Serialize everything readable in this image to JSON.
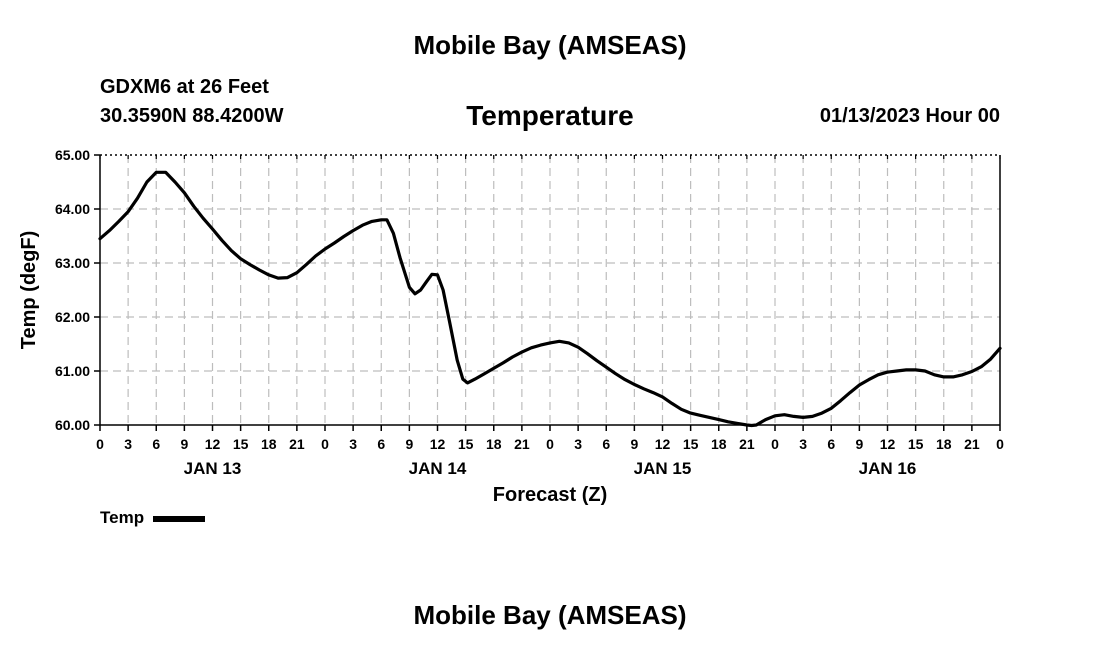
{
  "page": {
    "title": "Mobile Bay (AMSEAS)",
    "footer_title": "Mobile Bay (AMSEAS)"
  },
  "header": {
    "station": "GDXM6 at 26 Feet",
    "coordinates": "30.3590N  88.4200W",
    "timestamp": "01/13/2023 Hour 00"
  },
  "chart_data": {
    "type": "line",
    "title": "Temperature",
    "xlabel": "Forecast (Z)",
    "ylabel": "Temp (degF)",
    "ylim": [
      60.0,
      65.0
    ],
    "xlim": [
      0,
      96
    ],
    "x_unit": "hours from 01/13/2023 00Z",
    "grid": true,
    "legend_position": "bottom-left",
    "y_ticks": [
      "60.00",
      "61.00",
      "62.00",
      "63.00",
      "64.00",
      "65.00"
    ],
    "x_ticks": [
      {
        "x": 0,
        "label": "0"
      },
      {
        "x": 3,
        "label": "3"
      },
      {
        "x": 6,
        "label": "6"
      },
      {
        "x": 9,
        "label": "9"
      },
      {
        "x": 12,
        "label": "12"
      },
      {
        "x": 15,
        "label": "15"
      },
      {
        "x": 18,
        "label": "18"
      },
      {
        "x": 21,
        "label": "21"
      },
      {
        "x": 24,
        "label": "0"
      },
      {
        "x": 27,
        "label": "3"
      },
      {
        "x": 30,
        "label": "6"
      },
      {
        "x": 33,
        "label": "9"
      },
      {
        "x": 36,
        "label": "12"
      },
      {
        "x": 39,
        "label": "15"
      },
      {
        "x": 42,
        "label": "18"
      },
      {
        "x": 45,
        "label": "21"
      },
      {
        "x": 48,
        "label": "0"
      },
      {
        "x": 51,
        "label": "3"
      },
      {
        "x": 54,
        "label": "6"
      },
      {
        "x": 57,
        "label": "9"
      },
      {
        "x": 60,
        "label": "12"
      },
      {
        "x": 63,
        "label": "15"
      },
      {
        "x": 66,
        "label": "18"
      },
      {
        "x": 69,
        "label": "21"
      },
      {
        "x": 72,
        "label": "0"
      },
      {
        "x": 75,
        "label": "3"
      },
      {
        "x": 78,
        "label": "6"
      },
      {
        "x": 81,
        "label": "9"
      },
      {
        "x": 84,
        "label": "12"
      },
      {
        "x": 87,
        "label": "15"
      },
      {
        "x": 90,
        "label": "18"
      },
      {
        "x": 93,
        "label": "21"
      },
      {
        "x": 96,
        "label": "0"
      }
    ],
    "day_labels": [
      {
        "x": 12,
        "label": "JAN 13"
      },
      {
        "x": 36,
        "label": "JAN 14"
      },
      {
        "x": 60,
        "label": "JAN 15"
      },
      {
        "x": 84,
        "label": "JAN 16"
      }
    ],
    "series": [
      {
        "name": "Temp",
        "color": "#000000",
        "points": [
          [
            0,
            63.45
          ],
          [
            1,
            63.6
          ],
          [
            2,
            63.77
          ],
          [
            3,
            63.95
          ],
          [
            4,
            64.2
          ],
          [
            5,
            64.5
          ],
          [
            6,
            64.68
          ],
          [
            7,
            64.68
          ],
          [
            8,
            64.5
          ],
          [
            9,
            64.3
          ],
          [
            10,
            64.05
          ],
          [
            11,
            63.83
          ],
          [
            12,
            63.63
          ],
          [
            13,
            63.42
          ],
          [
            14,
            63.23
          ],
          [
            15,
            63.08
          ],
          [
            16,
            62.97
          ],
          [
            17,
            62.87
          ],
          [
            18,
            62.78
          ],
          [
            19,
            62.72
          ],
          [
            20,
            62.73
          ],
          [
            21,
            62.82
          ],
          [
            22,
            62.97
          ],
          [
            23,
            63.13
          ],
          [
            24,
            63.26
          ],
          [
            25,
            63.37
          ],
          [
            26,
            63.49
          ],
          [
            27,
            63.6
          ],
          [
            28,
            63.7
          ],
          [
            29,
            63.77
          ],
          [
            30,
            63.8
          ],
          [
            30.6,
            63.8
          ],
          [
            31.3,
            63.55
          ],
          [
            32,
            63.1
          ],
          [
            33,
            62.55
          ],
          [
            33.6,
            62.43
          ],
          [
            34.2,
            62.5
          ],
          [
            34.8,
            62.65
          ],
          [
            35.4,
            62.79
          ],
          [
            36,
            62.78
          ],
          [
            36.6,
            62.5
          ],
          [
            37.3,
            61.9
          ],
          [
            38.1,
            61.2
          ],
          [
            38.7,
            60.85
          ],
          [
            39.2,
            60.78
          ],
          [
            40,
            60.85
          ],
          [
            41,
            60.95
          ],
          [
            42,
            61.05
          ],
          [
            43,
            61.15
          ],
          [
            44,
            61.26
          ],
          [
            45,
            61.35
          ],
          [
            46,
            61.43
          ],
          [
            47,
            61.48
          ],
          [
            48,
            61.52
          ],
          [
            49,
            61.55
          ],
          [
            50,
            61.52
          ],
          [
            51,
            61.44
          ],
          [
            52,
            61.32
          ],
          [
            53,
            61.19
          ],
          [
            54,
            61.07
          ],
          [
            55,
            60.95
          ],
          [
            56,
            60.84
          ],
          [
            57,
            60.75
          ],
          [
            58,
            60.67
          ],
          [
            59,
            60.6
          ],
          [
            60,
            60.52
          ],
          [
            61,
            60.4
          ],
          [
            62,
            60.29
          ],
          [
            63,
            60.22
          ],
          [
            64,
            60.18
          ],
          [
            65,
            60.14
          ],
          [
            66,
            60.1
          ],
          [
            67,
            60.06
          ],
          [
            68,
            60.03
          ],
          [
            69,
            60.0
          ],
          [
            69.5,
            59.99
          ],
          [
            70,
            60.0
          ],
          [
            71,
            60.1
          ],
          [
            72,
            60.17
          ],
          [
            73,
            60.19
          ],
          [
            74,
            60.16
          ],
          [
            75,
            60.14
          ],
          [
            76,
            60.16
          ],
          [
            77,
            60.22
          ],
          [
            78,
            60.31
          ],
          [
            79,
            60.45
          ],
          [
            80,
            60.6
          ],
          [
            81,
            60.74
          ],
          [
            82,
            60.84
          ],
          [
            83,
            60.93
          ],
          [
            84,
            60.98
          ],
          [
            85,
            61.0
          ],
          [
            86,
            61.02
          ],
          [
            87,
            61.02
          ],
          [
            88,
            61.0
          ],
          [
            89,
            60.93
          ],
          [
            90,
            60.89
          ],
          [
            91,
            60.89
          ],
          [
            92,
            60.93
          ],
          [
            93,
            60.99
          ],
          [
            94,
            61.08
          ],
          [
            95,
            61.22
          ],
          [
            96,
            61.42
          ]
        ]
      }
    ]
  }
}
